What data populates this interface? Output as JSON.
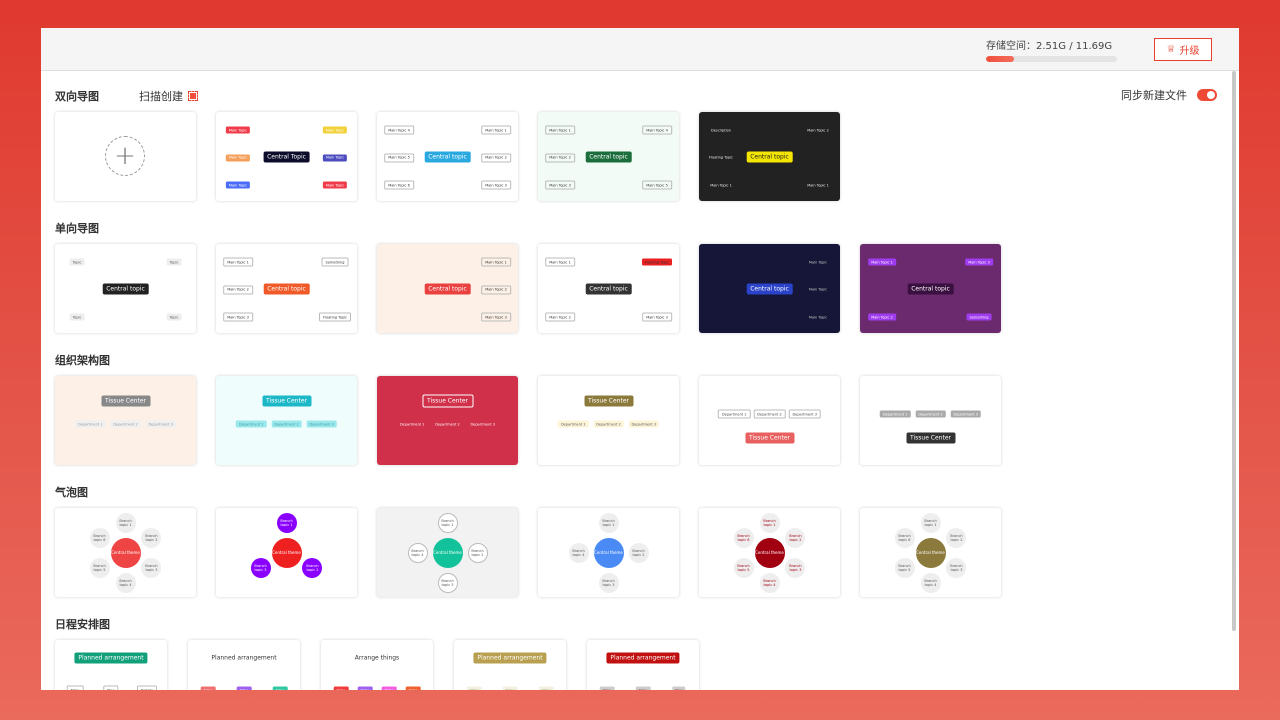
{
  "header": {
    "storage_label": "存储空间：2.51G / 11.69G",
    "storage_used_fraction": 0.2147,
    "upgrade_label": "升级",
    "upgrade_icon": "crown-icon"
  },
  "sync": {
    "label": "同步新建文件",
    "enabled": true
  },
  "scan": {
    "label": "扫描创建",
    "icon": "scan-icon"
  },
  "colors": {
    "accent": "#e8412f"
  },
  "sections": [
    {
      "title": "双向导图",
      "layout": "mind",
      "cards": [
        {
          "new": true,
          "icon": "plus-icon"
        },
        {
          "bg": "#ffffff",
          "center": "Central Topic",
          "cbg": "#0d0d2b",
          "cfg": "#fff",
          "nbg": [
            "#f03c4a",
            "#f5a05a",
            "#4a6cf7",
            "#f2d13a",
            "#4c4cbf",
            "#f03c4a"
          ],
          "nfg": "#fff",
          "nodes": [
            "Main Topic",
            "Main Topic",
            "Main Topic",
            "Main Topic",
            "Main Topic",
            "Main Topic"
          ]
        },
        {
          "bg": "#ffffff",
          "center": "Central topic",
          "cbg": "#29a9e0",
          "cfg": "#fff",
          "nbg": [
            "#fff"
          ],
          "nfg": "#333",
          "nodes": [
            "Main Topic 4",
            "Main Topic 5",
            "Main Topic 6",
            "Main Topic 1",
            "Main Topic 2",
            "Main Topic 3"
          ]
        },
        {
          "bg": "#f2fbf6",
          "center": "Central topic",
          "cbg": "#1b6e3c",
          "cfg": "#fff",
          "nbg": [
            "transparent"
          ],
          "nfg": "#333",
          "nodes": [
            "Main Topic 1",
            "Main Topic 2",
            "Main Topic 3",
            "Main Topic 4",
            "Main Topic 5"
          ]
        },
        {
          "bg": "#222222",
          "center": "Central topic",
          "cbg": "#f5e600",
          "cfg": "#222",
          "nbg": [
            "#222"
          ],
          "nfg": "#eee",
          "nodes": [
            "Description",
            "Floating Topic",
            "Main Topic 1",
            "Main Topic 2",
            "Main Topic 1"
          ]
        }
      ]
    },
    {
      "title": "单向导图",
      "layout": "mind",
      "cards": [
        {
          "bg": "#ffffff",
          "center": "Central topic",
          "cbg": "#222",
          "cfg": "#fff",
          "nbg": [
            "#eee"
          ],
          "nfg": "#555",
          "nodes": [
            "Topic",
            "Topic",
            "Topic",
            "Topic"
          ]
        },
        {
          "bg": "#ffffff",
          "center": "Central topic",
          "cbg": "#ef5a28",
          "cfg": "#fff",
          "nbg": [
            "#fff"
          ],
          "nfg": "#333",
          "nodes": [
            "Main Topic 1",
            "Main Topic 2",
            "Main Topic 3",
            "Something",
            "Floating Topic"
          ]
        },
        {
          "bg": "#fdf0e6",
          "center": "Central topic",
          "cbg": "#e94040",
          "cfg": "#fff",
          "nbg": [
            "transparent"
          ],
          "nfg": "#333",
          "nodes": [
            "Main Topic 1",
            "Main Topic 2",
            "Main Topic 3"
          ]
        },
        {
          "bg": "#ffffff",
          "center": "Central topic",
          "cbg": "#333",
          "cfg": "#fff",
          "nbg": [
            "transparent",
            "transparent",
            "#e82020"
          ],
          "nfg": "#333",
          "nodes": [
            "Main Topic 1",
            "Main Topic 2",
            "Floating Topic",
            "Main Topic 3"
          ]
        },
        {
          "bg": "#151638",
          "center": "Central topic",
          "cbg": "#2a43c9",
          "cfg": "#fff",
          "nbg": [
            "#151638"
          ],
          "nfg": "#ccc",
          "nodes": [
            "Main Topic",
            "Main Topic",
            "Main Topic"
          ]
        },
        {
          "bg": "#6b2a6e",
          "center": "Central topic",
          "cbg": "#3a1040",
          "cfg": "#fff",
          "nbg": [
            "#a03cf0"
          ],
          "nfg": "#fff",
          "nodes": [
            "Main Topic 1",
            "Main Topic 2",
            "Main Topic 3",
            "Something"
          ]
        }
      ]
    },
    {
      "title": "组织架构图",
      "layout": "org",
      "cards": [
        {
          "bg": "#fdf0e6",
          "center": "Tissue Center",
          "cbg": "#888",
          "cfg": "#fff",
          "nbg": [
            "#f0f0f0"
          ],
          "nfg": "#999",
          "nodes": [
            "Department 1",
            "Department 2",
            "Department 3"
          ]
        },
        {
          "bg": "#effdfd",
          "center": "Tissue Center",
          "cbg": "#1cb8c8",
          "cfg": "#fff",
          "nbg": [
            "#9be8ec"
          ],
          "nfg": "#3a9aa0",
          "nodes": [
            "Department 1",
            "Department 2",
            "Department 3"
          ]
        },
        {
          "bg": "#d0304a",
          "center": "Tissue Center",
          "cbg": "#d0304a",
          "cfg": "#fff",
          "nbg": [
            "#d0304a"
          ],
          "nfg": "#fff",
          "nodes": [
            "Department 1",
            "Department 2",
            "Department 3"
          ]
        },
        {
          "bg": "#ffffff",
          "center": "Tissue Center",
          "cbg": "#8c7a3c",
          "cfg": "#fff",
          "nbg": [
            "#fdf4d8"
          ],
          "nfg": "#555",
          "nodes": [
            "Department 1",
            "Department 2",
            "Department 3"
          ]
        },
        {
          "bg": "#ffffff",
          "center": "Tissue Center",
          "cbg": "#e86060",
          "cfg": "#fff",
          "nbg": [
            "#fff"
          ],
          "nfg": "#444",
          "nodes": [
            "Department 1",
            "Department 2",
            "Department 3"
          ],
          "bottom": true
        },
        {
          "bg": "#ffffff",
          "center": "Tissue Center",
          "cbg": "#333",
          "cfg": "#fff",
          "nbg": [
            "#aaa"
          ],
          "nfg": "#fff",
          "nodes": [
            "Department 1",
            "Department 2",
            "Department 3"
          ],
          "bottom": true
        }
      ]
    },
    {
      "title": "气泡图",
      "layout": "bubble",
      "cards": [
        {
          "bg": "#ffffff",
          "center": "Central theme",
          "cbg": "#ee4444",
          "cfg": "#fff",
          "nbg": [
            "#eee"
          ],
          "nfg": "#555",
          "nodes": [
            "Branch topic 1",
            "Branch topic 2",
            "Branch topic 3",
            "Branch topic 4",
            "Branch topic 5",
            "Branch topic 6"
          ]
        },
        {
          "bg": "#ffffff",
          "center": "Central theme",
          "cbg": "#ee2020",
          "cfg": "#fff",
          "nbg": [
            "#8a00ff"
          ],
          "nfg": "#fff",
          "nodes": [
            "Branch topic 1",
            "Branch topic 2",
            "Branch topic 3"
          ]
        },
        {
          "bg": "#f2f2f2",
          "center": "Central theme",
          "cbg": "#12c29a",
          "cfg": "#fff",
          "nbg": [
            "#fff"
          ],
          "nfg": "#555",
          "nodes": [
            "Branch topic 1",
            "Branch topic 2",
            "Branch topic 3",
            "Branch topic 4"
          ]
        },
        {
          "bg": "#ffffff",
          "center": "Central theme",
          "cbg": "#4a8af4",
          "cfg": "#fff",
          "nbg": [
            "#eee"
          ],
          "nfg": "#555",
          "nodes": [
            "Branch topic 1",
            "Branch topic 2",
            "Branch topic 3",
            "Branch topic 4"
          ]
        },
        {
          "bg": "#ffffff",
          "center": "Central theme",
          "cbg": "#a00010",
          "cfg": "#fff",
          "nbg": [
            "#eee"
          ],
          "nfg": "#a00010",
          "nodes": [
            "Branch topic 1",
            "Branch topic 2",
            "Branch topic 3",
            "Branch topic 4",
            "Branch topic 5",
            "Branch topic 6"
          ]
        },
        {
          "bg": "#ffffff",
          "center": "Central theme",
          "cbg": "#8c7a3c",
          "cfg": "#fff",
          "nbg": [
            "#eee"
          ],
          "nfg": "#555",
          "nodes": [
            "Branch topic 1",
            "Branch topic 2",
            "Branch topic 3",
            "Branch topic 4",
            "Branch topic 5",
            "Branch topic 6"
          ]
        }
      ]
    },
    {
      "title": "日程安排图",
      "layout": "schedule",
      "cards": [
        {
          "bg": "#ffffff",
          "center": "Planned arrangement",
          "cbg": "#12a07a",
          "cfg": "#fff",
          "nbg": [
            "transparent"
          ],
          "nfg": "#333",
          "nodes": [
            "Time",
            "Plan",
            "Details"
          ]
        },
        {
          "bg": "#ffffff",
          "center": "Planned arrangement",
          "cbg": "transparent",
          "cfg": "#333",
          "nbg": [
            "#f07070",
            "#a060f0",
            "#30c8a0"
          ],
          "nfg": "#fff",
          "nodes": [
            "Time",
            "Time",
            "Time"
          ]
        },
        {
          "bg": "#ffffff",
          "center": "Arrange things",
          "cbg": "transparent",
          "cfg": "#333",
          "nbg": [
            "#f03c3c",
            "#a060f0",
            "#f060e0",
            "#f06030"
          ],
          "nfg": "#fff",
          "nodes": [
            "Time",
            "Time",
            "Time",
            "Time"
          ]
        },
        {
          "bg": "#ffffff",
          "center": "Planned arrangement",
          "cbg": "#b8a050",
          "cfg": "#fff",
          "nbg": [
            "#f4f0e0"
          ],
          "nfg": "#a09060",
          "nodes": [
            "Time",
            "Time",
            "Time"
          ]
        },
        {
          "bg": "#ffffff",
          "center": "Planned arrangement",
          "cbg": "#c01010",
          "cfg": "#fff",
          "nbg": [
            "#ccc"
          ],
          "nfg": "#a03030",
          "nodes": [
            "Time",
            "Time",
            "Plan"
          ]
        }
      ]
    }
  ]
}
